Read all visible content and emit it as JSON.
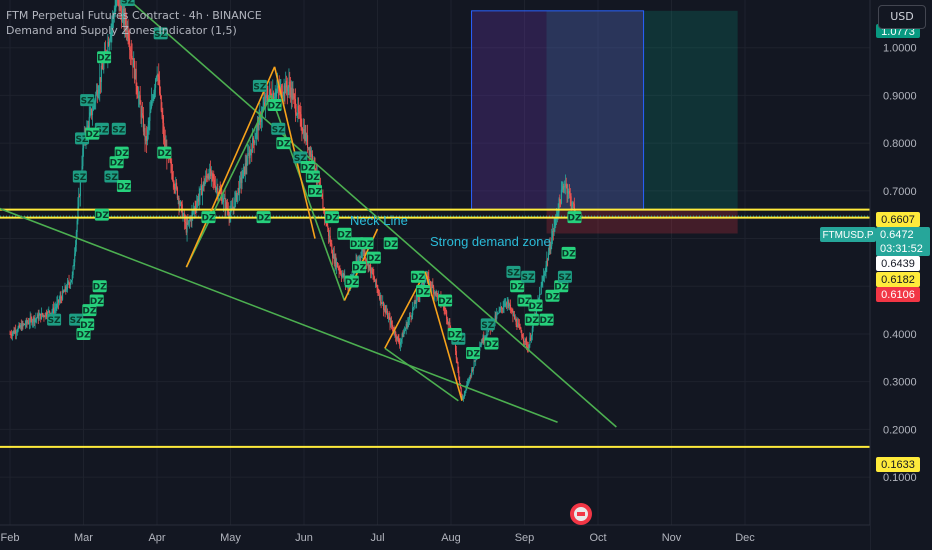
{
  "header": {
    "symbol_title": "FTM Perpetual Futures Contract",
    "interval": "4h",
    "exchange": "BINANCE",
    "indicator_line": "Demand and Supply Zones Indicator (1,5)"
  },
  "currency_button": "USD",
  "annotations": {
    "neck_line": "Neck Line",
    "strong_demand": "Strong demand zone"
  },
  "price_labels": {
    "target": "1.0773",
    "level_1": "0.6607",
    "last_price": "0.6472",
    "countdown": "03:31:52",
    "level_2": "0.6439",
    "level_3": "0.6182",
    "stop": "0.6106",
    "support": "0.1633"
  },
  "symbol_tag": "FTMUSD.P",
  "colors": {
    "background": "#131722",
    "up": "#26a69a",
    "down": "#ef5350",
    "yellow_line": "#ffeb3b",
    "green_line": "#4caf50",
    "orange_line": "#f7a21b",
    "annotation_text": "#2bbbd8",
    "zone_label": "#26d07c"
  },
  "chart_data": {
    "type": "candlestick",
    "x": [
      "Feb",
      "Mar",
      "Apr",
      "May",
      "Jun",
      "Jul",
      "Aug",
      "Sep",
      "Oct",
      "Nov",
      "Dec"
    ],
    "y_ticks": [
      0.1,
      0.2,
      0.3,
      0.4,
      0.5,
      0.6,
      0.7,
      0.8,
      0.9,
      1.0
    ],
    "y_tick_labels": [
      "0.1000",
      "0.2000",
      "0.3000",
      "0.4000",
      "0.5000",
      "0.6000",
      "0.7000",
      "0.8000",
      "0.9000",
      "1.0000"
    ],
    "ylim": [
      0.01,
      1.1
    ],
    "price_path": [
      {
        "x": 0.0,
        "y": 0.4
      },
      {
        "x": 0.3,
        "y": 0.43
      },
      {
        "x": 0.6,
        "y": 0.45
      },
      {
        "x": 0.85,
        "y": 0.52
      },
      {
        "x": 1.0,
        "y": 0.8
      },
      {
        "x": 1.25,
        "y": 0.95
      },
      {
        "x": 1.45,
        "y": 1.1
      },
      {
        "x": 1.6,
        "y": 1.04
      },
      {
        "x": 1.85,
        "y": 0.8
      },
      {
        "x": 2.0,
        "y": 0.96
      },
      {
        "x": 2.1,
        "y": 0.8
      },
      {
        "x": 2.4,
        "y": 0.62
      },
      {
        "x": 2.7,
        "y": 0.74
      },
      {
        "x": 3.0,
        "y": 0.65
      },
      {
        "x": 3.5,
        "y": 0.9
      },
      {
        "x": 3.8,
        "y": 0.92
      },
      {
        "x": 4.15,
        "y": 0.75
      },
      {
        "x": 4.4,
        "y": 0.56
      },
      {
        "x": 4.6,
        "y": 0.5
      },
      {
        "x": 4.8,
        "y": 0.58
      },
      {
        "x": 5.1,
        "y": 0.45
      },
      {
        "x": 5.3,
        "y": 0.38
      },
      {
        "x": 5.65,
        "y": 0.52
      },
      {
        "x": 5.9,
        "y": 0.46
      },
      {
        "x": 6.05,
        "y": 0.38
      },
      {
        "x": 6.15,
        "y": 0.26
      },
      {
        "x": 6.4,
        "y": 0.38
      },
      {
        "x": 6.75,
        "y": 0.47
      },
      {
        "x": 7.05,
        "y": 0.37
      },
      {
        "x": 7.3,
        "y": 0.55
      },
      {
        "x": 7.45,
        "y": 0.66
      },
      {
        "x": 7.55,
        "y": 0.72
      },
      {
        "x": 7.7,
        "y": 0.647
      }
    ],
    "horizontal_levels": [
      0.6607,
      0.6439,
      0.1633
    ],
    "trend_lines": [
      {
        "from": {
          "x": 1.62,
          "y": 1.1
        },
        "to": {
          "x": 8.25,
          "y": 0.205
        }
      },
      {
        "from": {
          "x": -0.6,
          "y": 0.69
        },
        "to": {
          "x": 7.45,
          "y": 0.215
        }
      },
      {
        "from": {
          "x": 2.4,
          "y": 0.54
        },
        "to": {
          "x": 3.55,
          "y": 0.9
        }
      },
      {
        "from": {
          "x": 3.55,
          "y": 0.9
        },
        "to": {
          "x": 4.55,
          "y": 0.47
        }
      },
      {
        "from": {
          "x": 5.1,
          "y": 0.37
        },
        "to": {
          "x": 6.1,
          "y": 0.26
        }
      }
    ],
    "swing_legs": [
      [
        {
          "x": 2.4,
          "y": 0.54
        },
        {
          "x": 3.6,
          "y": 0.96
        }
      ],
      [
        {
          "x": 3.6,
          "y": 0.96
        },
        {
          "x": 4.15,
          "y": 0.6
        }
      ],
      [
        {
          "x": 4.55,
          "y": 0.47
        },
        {
          "x": 5.0,
          "y": 0.62
        }
      ],
      [
        {
          "x": 5.1,
          "y": 0.37
        },
        {
          "x": 5.65,
          "y": 0.53
        }
      ],
      [
        {
          "x": 5.65,
          "y": 0.53
        },
        {
          "x": 6.15,
          "y": 0.26
        }
      ]
    ],
    "position_box": {
      "x_start": 7.3,
      "x_end": 9.9,
      "x_entry": 8.62,
      "entry": 0.6607,
      "target": 1.0773,
      "stop": 0.6106
    },
    "zone_labels": [
      {
        "text": "SZ",
        "x": 1.6,
        "y": 1.1
      },
      {
        "text": "SZ",
        "x": 2.05,
        "y": 1.03
      },
      {
        "text": "DZ",
        "x": 1.28,
        "y": 0.98
      },
      {
        "text": "SZ",
        "x": 1.05,
        "y": 0.89
      },
      {
        "text": "SZ",
        "x": 1.25,
        "y": 0.83
      },
      {
        "text": "SZ",
        "x": 1.48,
        "y": 0.83
      },
      {
        "text": "SZ",
        "x": 0.98,
        "y": 0.81
      },
      {
        "text": "DZ",
        "x": 1.12,
        "y": 0.82
      },
      {
        "text": "DZ",
        "x": 1.52,
        "y": 0.78
      },
      {
        "text": "DZ",
        "x": 2.1,
        "y": 0.78
      },
      {
        "text": "DZ",
        "x": 1.45,
        "y": 0.76
      },
      {
        "text": "SZ",
        "x": 1.38,
        "y": 0.73
      },
      {
        "text": "DZ",
        "x": 1.55,
        "y": 0.71
      },
      {
        "text": "SZ",
        "x": 3.4,
        "y": 0.92
      },
      {
        "text": "DZ",
        "x": 3.6,
        "y": 0.88
      },
      {
        "text": "SZ",
        "x": 3.65,
        "y": 0.83
      },
      {
        "text": "DZ",
        "x": 3.72,
        "y": 0.8
      },
      {
        "text": "SZ",
        "x": 3.95,
        "y": 0.77
      },
      {
        "text": "DZ",
        "x": 4.05,
        "y": 0.75
      },
      {
        "text": "DZ",
        "x": 4.12,
        "y": 0.73
      },
      {
        "text": "DZ",
        "x": 4.15,
        "y": 0.7
      },
      {
        "text": "SZ",
        "x": 0.95,
        "y": 0.73
      },
      {
        "text": "DZ",
        "x": 1.25,
        "y": 0.65
      },
      {
        "text": "DZ",
        "x": 2.7,
        "y": 0.645
      },
      {
        "text": "DZ",
        "x": 3.45,
        "y": 0.645
      },
      {
        "text": "DZ",
        "x": 4.38,
        "y": 0.645
      },
      {
        "text": "DZ",
        "x": 4.55,
        "y": 0.61
      },
      {
        "text": "DZ",
        "x": 4.72,
        "y": 0.59
      },
      {
        "text": "DZ",
        "x": 4.85,
        "y": 0.59
      },
      {
        "text": "DZ",
        "x": 5.18,
        "y": 0.59
      },
      {
        "text": "DZ",
        "x": 4.95,
        "y": 0.56
      },
      {
        "text": "DZ",
        "x": 4.75,
        "y": 0.54
      },
      {
        "text": "DZ",
        "x": 4.65,
        "y": 0.51
      },
      {
        "text": "DZ",
        "x": 5.55,
        "y": 0.52
      },
      {
        "text": "DZ",
        "x": 5.62,
        "y": 0.49
      },
      {
        "text": "DZ",
        "x": 5.92,
        "y": 0.47
      },
      {
        "text": "DZ",
        "x": 1.22,
        "y": 0.5
      },
      {
        "text": "DZ",
        "x": 1.18,
        "y": 0.47
      },
      {
        "text": "DZ",
        "x": 1.08,
        "y": 0.45
      },
      {
        "text": "SZ",
        "x": 0.6,
        "y": 0.43
      },
      {
        "text": "SZ",
        "x": 0.9,
        "y": 0.43
      },
      {
        "text": "DZ",
        "x": 1.05,
        "y": 0.42
      },
      {
        "text": "DZ",
        "x": 1.0,
        "y": 0.4
      },
      {
        "text": "SZ",
        "x": 6.1,
        "y": 0.39
      },
      {
        "text": "DZ",
        "x": 6.05,
        "y": 0.4
      },
      {
        "text": "DZ",
        "x": 6.55,
        "y": 0.38
      },
      {
        "text": "DZ",
        "x": 6.3,
        "y": 0.36
      },
      {
        "text": "SZ",
        "x": 6.5,
        "y": 0.42
      },
      {
        "text": "DZ",
        "x": 6.9,
        "y": 0.5
      },
      {
        "text": "SZ",
        "x": 6.85,
        "y": 0.53
      },
      {
        "text": "SZ",
        "x": 7.05,
        "y": 0.52
      },
      {
        "text": "DZ",
        "x": 7.0,
        "y": 0.47
      },
      {
        "text": "DZ",
        "x": 7.15,
        "y": 0.46
      },
      {
        "text": "DZ",
        "x": 7.1,
        "y": 0.43
      },
      {
        "text": "DZ",
        "x": 7.3,
        "y": 0.43
      },
      {
        "text": "DZ",
        "x": 7.38,
        "y": 0.48
      },
      {
        "text": "DZ",
        "x": 7.5,
        "y": 0.5
      },
      {
        "text": "SZ",
        "x": 7.55,
        "y": 0.52
      },
      {
        "text": "DZ",
        "x": 7.6,
        "y": 0.57
      },
      {
        "text": "DZ",
        "x": 7.68,
        "y": 0.645
      }
    ]
  }
}
